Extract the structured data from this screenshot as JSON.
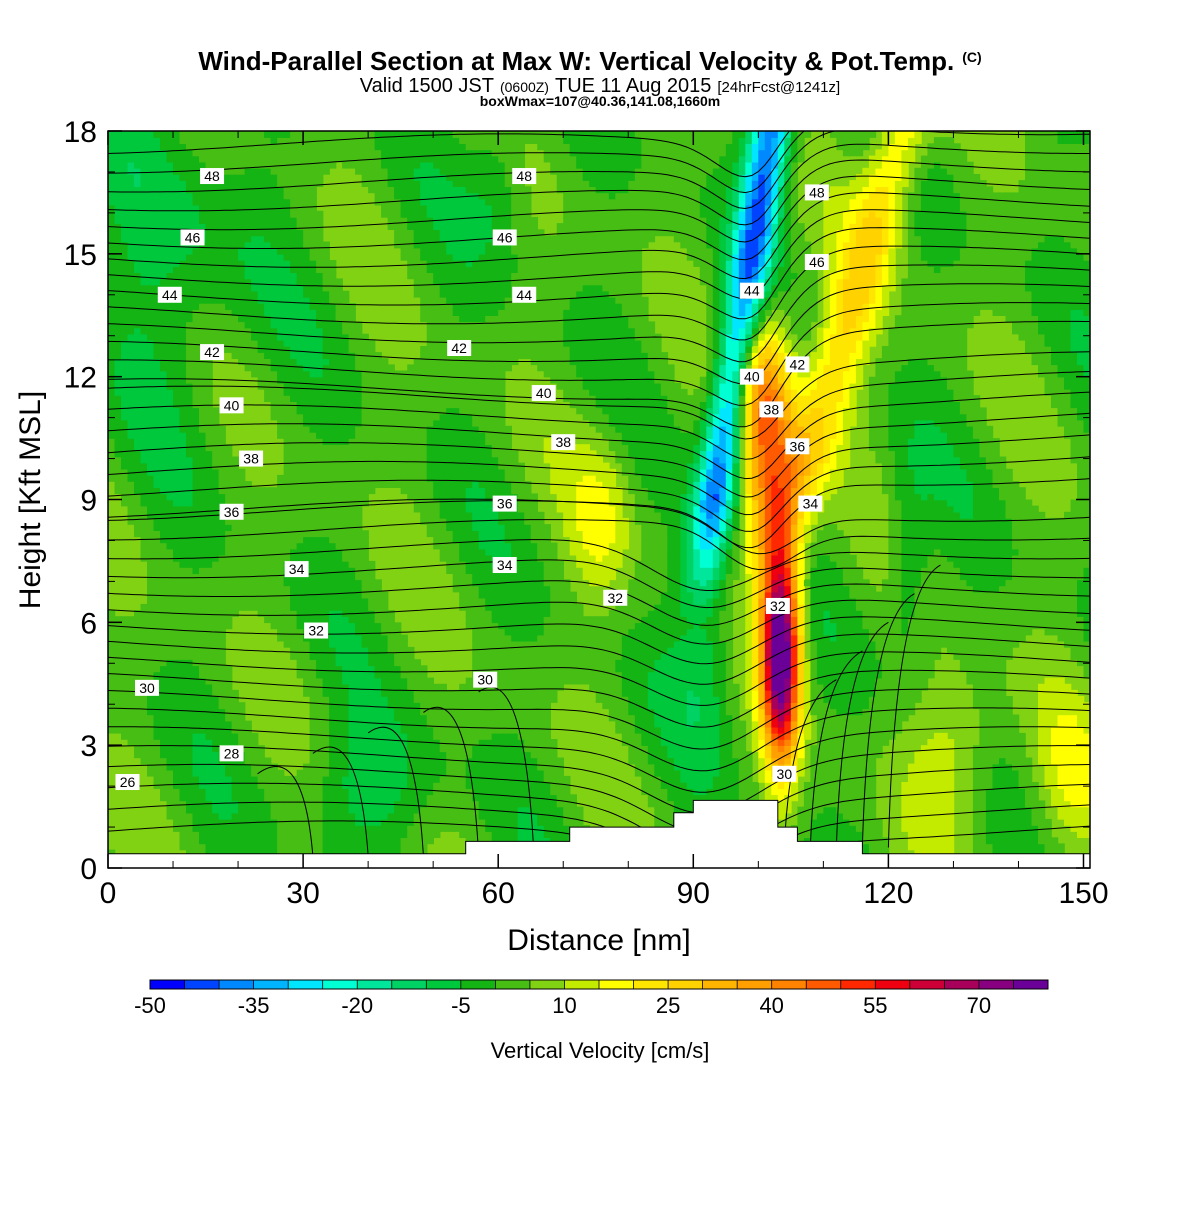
{
  "chart_data": {
    "type": "heatmap",
    "title": "Wind-Parallel Section at Max W: Vertical Velocity & Pot.Temp.",
    "copyright": "(C)",
    "subtitle": {
      "prefix": "Valid 1500 JST",
      "utc": "(0600Z)",
      "suffix": "TUE 11 Aug 2015",
      "forecast": "[24hrFcst@1241z]"
    },
    "subtitle2": "boxWmax=107@40.36,141.08,1660m",
    "xlabel": "Distance [nm]",
    "ylabel": "Height [Kft MSL]",
    "xlim": [
      0,
      151
    ],
    "ylim": [
      0,
      18
    ],
    "x_ticks": [
      "0",
      "30",
      "60",
      "90",
      "120",
      "150"
    ],
    "y_ticks": [
      "0",
      "3",
      "6",
      "9",
      "12",
      "15",
      "18"
    ],
    "colorbar": {
      "label": "Vertical Velocity [cm/s]",
      "min": -50,
      "max": 75,
      "step": 5,
      "tick_labels": [
        "-50",
        "-35",
        "-20",
        "-5",
        "10",
        "25",
        "40",
        "55",
        "70"
      ],
      "colors": [
        "#0000ff",
        "#0044ff",
        "#0088ff",
        "#00b4ff",
        "#00e6ff",
        "#00ffd2",
        "#00e69a",
        "#00d264",
        "#00c83c",
        "#14b414",
        "#46be14",
        "#82d214",
        "#c3eb00",
        "#ffff00",
        "#ffe600",
        "#ffd200",
        "#ffb400",
        "#ffa000",
        "#ff8200",
        "#ff5a00",
        "#ff2800",
        "#ee0010",
        "#cc0036",
        "#a8005a",
        "#880080",
        "#6a0098"
      ]
    },
    "contour_variable": "Potential Temperature",
    "contour_labels": [
      {
        "text": "48",
        "x": 16,
        "y": 16.9
      },
      {
        "text": "46",
        "x": 13,
        "y": 15.4
      },
      {
        "text": "44",
        "x": 9.5,
        "y": 14
      },
      {
        "text": "42",
        "x": 16,
        "y": 12.6
      },
      {
        "text": "40",
        "x": 19,
        "y": 11.3
      },
      {
        "text": "38",
        "x": 22,
        "y": 10
      },
      {
        "text": "36",
        "x": 19,
        "y": 8.7
      },
      {
        "text": "34",
        "x": 29,
        "y": 7.3
      },
      {
        "text": "32",
        "x": 32,
        "y": 5.8
      },
      {
        "text": "30",
        "x": 6,
        "y": 4.4
      },
      {
        "text": "28",
        "x": 19,
        "y": 2.8
      },
      {
        "text": "26",
        "x": 3,
        "y": 2.1
      },
      {
        "text": "48",
        "x": 64,
        "y": 16.9
      },
      {
        "text": "46",
        "x": 61,
        "y": 15.4
      },
      {
        "text": "44",
        "x": 64,
        "y": 14
      },
      {
        "text": "42",
        "x": 54,
        "y": 12.7
      },
      {
        "text": "40",
        "x": 67,
        "y": 11.6
      },
      {
        "text": "38",
        "x": 70,
        "y": 10.4
      },
      {
        "text": "36",
        "x": 61,
        "y": 8.9
      },
      {
        "text": "34",
        "x": 61,
        "y": 7.4
      },
      {
        "text": "32",
        "x": 78,
        "y": 6.6
      },
      {
        "text": "30",
        "x": 58,
        "y": 4.6
      },
      {
        "text": "48",
        "x": 109,
        "y": 16.5
      },
      {
        "text": "46",
        "x": 109,
        "y": 14.8
      },
      {
        "text": "44",
        "x": 99,
        "y": 14.1
      },
      {
        "text": "42",
        "x": 106,
        "y": 12.3
      },
      {
        "text": "40",
        "x": 99,
        "y": 12
      },
      {
        "text": "38",
        "x": 102,
        "y": 11.2
      },
      {
        "text": "36",
        "x": 106,
        "y": 10.3
      },
      {
        "text": "34",
        "x": 108,
        "y": 8.9
      },
      {
        "text": "32",
        "x": 103,
        "y": 6.4
      },
      {
        "text": "30",
        "x": 104,
        "y": 2.3
      }
    ],
    "terrain": [
      [
        0,
        0.35
      ],
      [
        55,
        0.35
      ],
      [
        55,
        0.65
      ],
      [
        71,
        0.65
      ],
      [
        71,
        1.0
      ],
      [
        87,
        1.0
      ],
      [
        87,
        1.35
      ],
      [
        90,
        1.35
      ],
      [
        90,
        1.65
      ],
      [
        103,
        1.65
      ],
      [
        103,
        1.0
      ],
      [
        106,
        1.0
      ],
      [
        106,
        0.65
      ],
      [
        116,
        0.65
      ],
      [
        116,
        0.35
      ],
      [
        151,
        0.35
      ]
    ]
  }
}
